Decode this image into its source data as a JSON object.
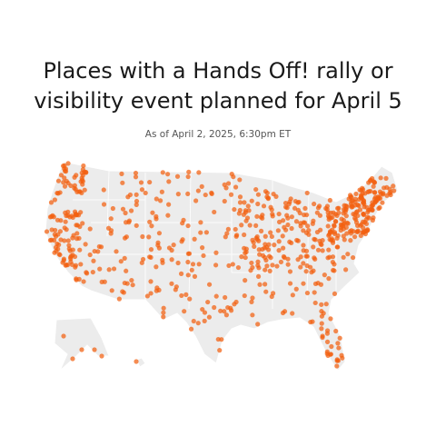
{
  "title": "Places with a Hands Off! rally or visibility event planned for April 5",
  "subtitle": "As of April 2, 2025, 6:30pm ET"
}
